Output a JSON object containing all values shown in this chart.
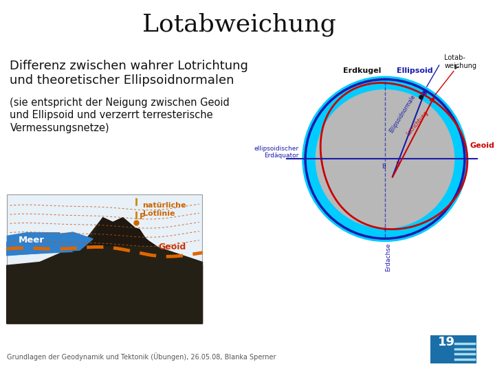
{
  "title": "Lotabweichung",
  "title_fontsize": 26,
  "title_font": "serif",
  "bg_color": "#ffffff",
  "text_line1": "Differenz zwischen wahrer Lotrichtung",
  "text_line2": "und theoretischer Ellipsoidnormalen",
  "text_line3": "(sie entspricht der Neigung zwischen Geoid",
  "text_line4": "und Ellipsoid und verzerrt terresterische",
  "text_line5": "Vermessungsnetze)",
  "footer_text": "Grundlagen der Geodynamik und Tektonik (Übungen), 26.05.08, Blanka Sperner",
  "footer_fontsize": 7,
  "page_number": "19",
  "page_bg": "#1a6fa8",
  "page_text_color": "#ffffff",
  "page_fontsize": 13,
  "ellipsoid_bg": "#b8b8b8",
  "ellipsoid_border": "#1a1aaa",
  "geoid_color": "#cc0000",
  "cyan_ring": "#00ccff",
  "eq_line_color": "#1a1aaa",
  "lotabweichung_color": "#cc0000",
  "ellipsoid_normal_color": "#1a1aaa"
}
